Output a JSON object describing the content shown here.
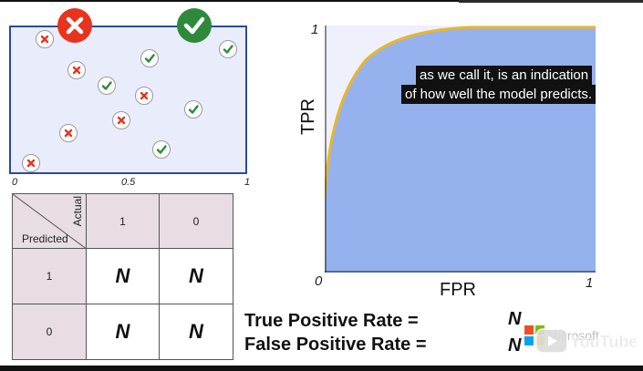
{
  "scatter": {
    "x_ticks": [
      "0",
      "0.5",
      "1"
    ],
    "negative_icon": "x-circle-icon",
    "positive_icon": "check-circle-icon",
    "colors": {
      "negative": "#e8331f",
      "positive": "#2e8a3a",
      "panel": "#e9ecfa",
      "border": "#2c4a9c"
    }
  },
  "matrix": {
    "corner_predicted": "Predicted",
    "corner_actual": "Actual",
    "actual_headers": [
      "1",
      "0"
    ],
    "predicted_headers": [
      "1",
      "0"
    ],
    "cells": [
      [
        "N",
        "N"
      ],
      [
        "N",
        "N"
      ]
    ]
  },
  "roc": {
    "y_label": "TPR",
    "x_label": "FPR",
    "y_tick_top": "1",
    "origin_tick": "0",
    "x_tick_right": "1",
    "colors": {
      "area": "#95b2ee",
      "curve": "#e9b62a",
      "background": "#eef0fb"
    }
  },
  "captions": {
    "line1": "as we call it, is an indication",
    "line2": "of how well the model predicts."
  },
  "formulas": {
    "tpr": "True Positive Rate =",
    "fpr": "False Positive Rate =",
    "tpr_value": "N",
    "fpr_value": "N"
  },
  "watermark": {
    "brand_text": "Microsoft",
    "player_text": "YouTube"
  }
}
